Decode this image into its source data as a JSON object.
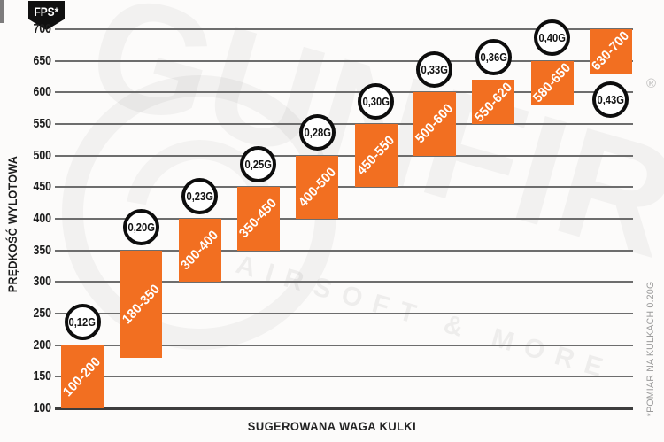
{
  "badge": {
    "label": "FPS*"
  },
  "footnote": "*POMIAR NA KULKACH 0.20G",
  "watermark": {
    "brand": "GUNFIRE",
    "tagline": "AIRSOFT & MORE",
    "registered": "®"
  },
  "colors": {
    "bar": "#f26f21",
    "grid": "#6d6d6d",
    "axis": "#3d3d3d",
    "badge_bg": "#101010",
    "bubble_border": "#0d0d0d",
    "text": "#1c1c1c",
    "muted": "#9b9b9b",
    "background": "#fcfbfa"
  },
  "chart_data": {
    "type": "bar",
    "variant": "floating-range-columns",
    "title": "",
    "ylabel": "PRĘDKOŚĆ WYLOTOWA",
    "xlabel": "SUGEROWANA WAGA KULKI",
    "y_unit": "FPS",
    "ylim": [
      100,
      700
    ],
    "yticks": [
      100,
      150,
      200,
      250,
      300,
      350,
      400,
      450,
      500,
      550,
      600,
      650,
      700
    ],
    "grid": true,
    "legend": "none",
    "categories": [
      "0,12G",
      "0,20G",
      "0,23G",
      "0,25G",
      "0,28G",
      "0,30G",
      "0,33G",
      "0,36G",
      "0,40G",
      "0,43G"
    ],
    "series": [
      {
        "weight": "0,12G",
        "range": "100-200",
        "low": 100,
        "high": 200,
        "bubble": "above"
      },
      {
        "weight": "0,20G",
        "range": "180-350",
        "low": 180,
        "high": 350,
        "bubble": "above"
      },
      {
        "weight": "0,23G",
        "range": "300-400",
        "low": 300,
        "high": 400,
        "bubble": "above"
      },
      {
        "weight": "0,25G",
        "range": "350-450",
        "low": 350,
        "high": 450,
        "bubble": "above"
      },
      {
        "weight": "0,28G",
        "range": "400-500",
        "low": 400,
        "high": 500,
        "bubble": "above"
      },
      {
        "weight": "0,30G",
        "range": "450-550",
        "low": 450,
        "high": 550,
        "bubble": "above"
      },
      {
        "weight": "0,33G",
        "range": "500-600",
        "low": 500,
        "high": 600,
        "bubble": "above"
      },
      {
        "weight": "0,36G",
        "range": "550-620",
        "low": 550,
        "high": 620,
        "bubble": "above"
      },
      {
        "weight": "0,40G",
        "range": "580-650",
        "low": 580,
        "high": 650,
        "bubble": "above"
      },
      {
        "weight": "0,43G",
        "range": "630-700",
        "low": 630,
        "high": 700,
        "bubble": "below"
      }
    ]
  }
}
